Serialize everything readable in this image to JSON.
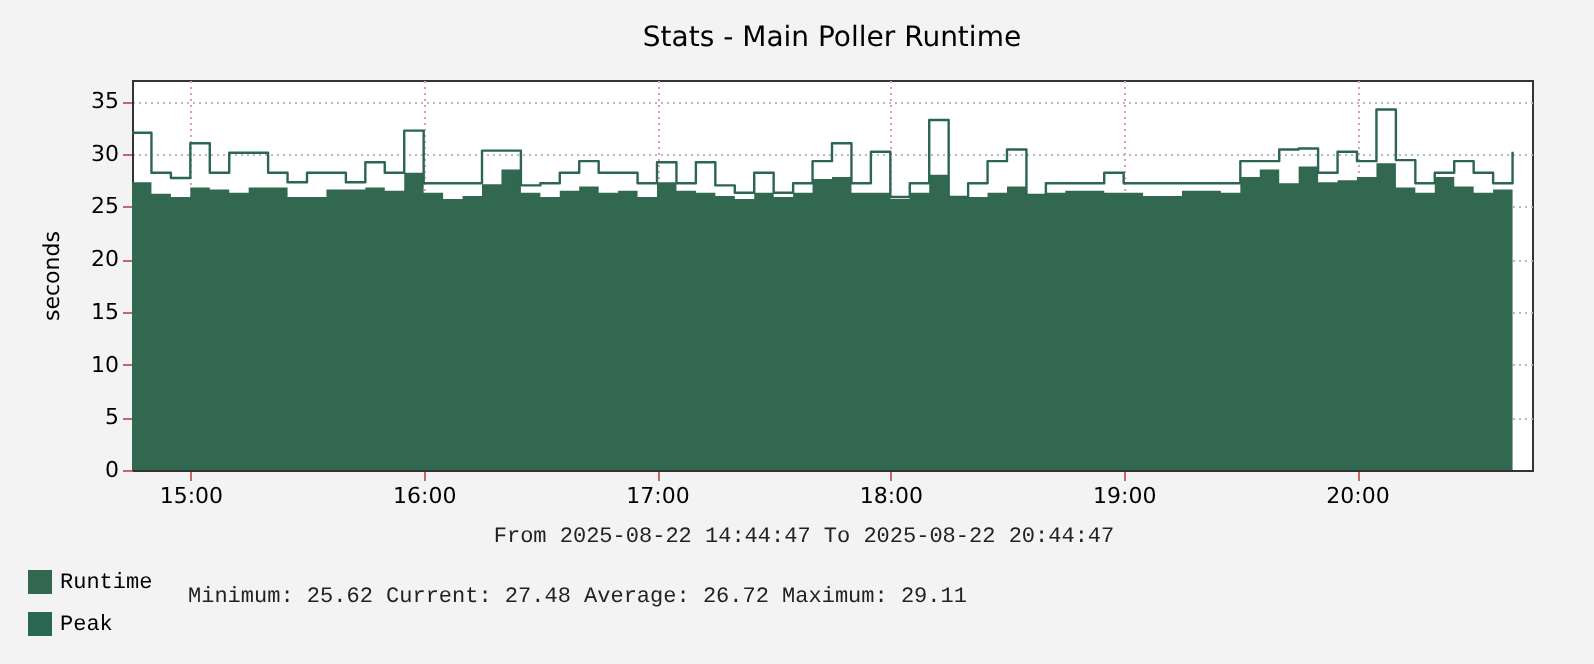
{
  "chart_data": {
    "type": "area",
    "title": "Stats - Main Poller Runtime",
    "ylabel": "seconds",
    "x": [
      "2025-08-22T14:45",
      "2025-08-22T14:50",
      "2025-08-22T14:55",
      "2025-08-22T15:00",
      "2025-08-22T15:05",
      "2025-08-22T15:10",
      "2025-08-22T15:15",
      "2025-08-22T15:20",
      "2025-08-22T15:25",
      "2025-08-22T15:30",
      "2025-08-22T15:35",
      "2025-08-22T15:40",
      "2025-08-22T15:45",
      "2025-08-22T15:50",
      "2025-08-22T15:55",
      "2025-08-22T16:00",
      "2025-08-22T16:05",
      "2025-08-22T16:10",
      "2025-08-22T16:15",
      "2025-08-22T16:20",
      "2025-08-22T16:25",
      "2025-08-22T16:30",
      "2025-08-22T16:35",
      "2025-08-22T16:40",
      "2025-08-22T16:45",
      "2025-08-22T16:50",
      "2025-08-22T16:55",
      "2025-08-22T17:00",
      "2025-08-22T17:05",
      "2025-08-22T17:10",
      "2025-08-22T17:15",
      "2025-08-22T17:20",
      "2025-08-22T17:25",
      "2025-08-22T17:30",
      "2025-08-22T17:35",
      "2025-08-22T17:40",
      "2025-08-22T17:45",
      "2025-08-22T17:50",
      "2025-08-22T17:55",
      "2025-08-22T18:00",
      "2025-08-22T18:05",
      "2025-08-22T18:10",
      "2025-08-22T18:15",
      "2025-08-22T18:20",
      "2025-08-22T18:25",
      "2025-08-22T18:30",
      "2025-08-22T18:35",
      "2025-08-22T18:40",
      "2025-08-22T18:45",
      "2025-08-22T18:50",
      "2025-08-22T18:55",
      "2025-08-22T19:00",
      "2025-08-22T19:05",
      "2025-08-22T19:10",
      "2025-08-22T19:15",
      "2025-08-22T19:20",
      "2025-08-22T19:25",
      "2025-08-22T19:30",
      "2025-08-22T19:35",
      "2025-08-22T19:40",
      "2025-08-22T19:45",
      "2025-08-22T19:50",
      "2025-08-22T19:55",
      "2025-08-22T20:00",
      "2025-08-22T20:05",
      "2025-08-22T20:10",
      "2025-08-22T20:15",
      "2025-08-22T20:20",
      "2025-08-22T20:25",
      "2025-08-22T20:30",
      "2025-08-22T20:35",
      "2025-08-22T20:40"
    ],
    "series": [
      {
        "name": "Runtime",
        "color": "#31684f",
        "values": [
          27.3,
          26.2,
          25.9,
          26.8,
          26.6,
          26.3,
          26.8,
          26.8,
          25.9,
          25.9,
          26.6,
          26.6,
          26.8,
          26.5,
          28.2,
          26.3,
          25.7,
          26.0,
          27.1,
          28.5,
          26.3,
          25.9,
          26.5,
          26.9,
          26.3,
          26.5,
          25.9,
          27.3,
          26.5,
          26.3,
          26.0,
          25.7,
          26.3,
          25.9,
          26.3,
          27.6,
          27.8,
          26.3,
          26.3,
          25.7,
          26.3,
          28.0,
          25.9,
          25.9,
          26.3,
          26.9,
          26.0,
          26.3,
          26.5,
          26.5,
          26.3,
          26.3,
          26.0,
          26.0,
          26.5,
          26.5,
          26.3,
          27.8,
          28.5,
          27.2,
          28.8,
          27.3,
          27.5,
          27.8,
          29.1,
          26.8,
          26.3,
          27.8,
          26.9,
          26.3,
          26.6,
          27.5
        ]
      },
      {
        "name": "Peak",
        "type": "step",
        "color": "#2b6650",
        "values": [
          32.0,
          28.2,
          27.7,
          31.0,
          28.2,
          30.1,
          30.1,
          28.2,
          27.3,
          28.2,
          28.2,
          27.3,
          29.2,
          28.2,
          32.2,
          27.2,
          27.2,
          27.2,
          30.3,
          30.3,
          27.0,
          27.2,
          28.2,
          29.3,
          28.2,
          28.2,
          27.2,
          29.2,
          27.2,
          29.2,
          27.0,
          26.3,
          28.2,
          26.3,
          27.2,
          29.3,
          31.0,
          27.2,
          30.2,
          25.9,
          27.2,
          33.2,
          25.9,
          27.2,
          29.3,
          30.4,
          26.1,
          27.2,
          27.2,
          27.2,
          28.2,
          27.2,
          27.2,
          27.2,
          27.2,
          27.2,
          27.2,
          29.3,
          29.3,
          30.4,
          30.5,
          28.2,
          30.2,
          29.3,
          34.2,
          29.4,
          27.2,
          28.2,
          29.3,
          28.2,
          27.2,
          30.2
        ]
      }
    ],
    "xlim": [
      "2025-08-22T14:45",
      "2025-08-22T20:45"
    ],
    "xticks": [
      {
        "value": "2025-08-22T15:00",
        "label": "15:00"
      },
      {
        "value": "2025-08-22T16:00",
        "label": "16:00"
      },
      {
        "value": "2025-08-22T17:00",
        "label": "17:00"
      },
      {
        "value": "2025-08-22T18:00",
        "label": "18:00"
      },
      {
        "value": "2025-08-22T19:00",
        "label": "19:00"
      },
      {
        "value": "2025-08-22T20:00",
        "label": "20:00"
      }
    ],
    "ylim": [
      0,
      37
    ],
    "yticks": [
      0,
      5,
      10,
      15,
      20,
      25,
      30,
      35
    ],
    "grid": true,
    "legend": "bottom left",
    "annotations": [
      "From 2025-08-22 14:44:47 To 2025-08-22 20:44:47",
      "Minimum:   25.62    Current:   27.48    Average:   26.72    Maximum:   29.11"
    ]
  }
}
